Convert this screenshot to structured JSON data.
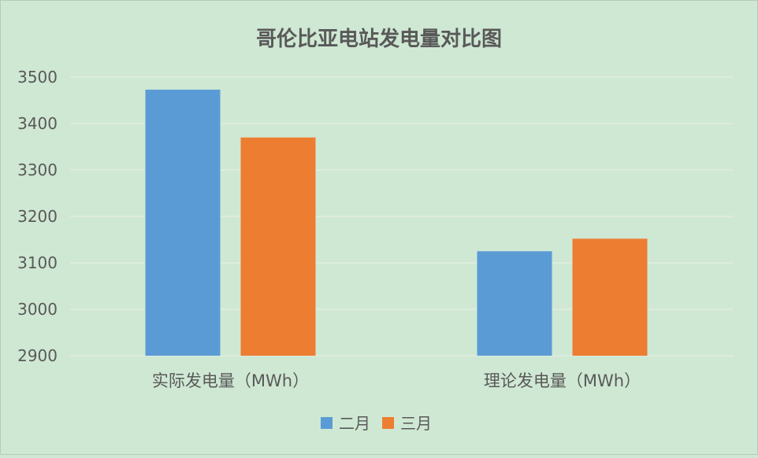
{
  "colors": {
    "background": "#cfe8d3",
    "gridline": "#e3ede5",
    "text": "#595959",
    "title_text": "#595959",
    "series": [
      "#5b9bd5",
      "#ed7d31"
    ]
  },
  "chart_data": {
    "type": "bar",
    "title": "哥伦比亚电站发电量对比图",
    "categories": [
      "实际发电量（MWh）",
      "理论发电量（MWh）"
    ],
    "series": [
      {
        "name": "二月",
        "values": [
          3473,
          3125
        ]
      },
      {
        "name": "三月",
        "values": [
          3370,
          3152
        ]
      }
    ],
    "ylim": [
      2900,
      3500
    ],
    "yticks": [
      2900,
      3000,
      3100,
      3200,
      3300,
      3400,
      3500
    ],
    "grid": true,
    "legend": "bottom"
  }
}
